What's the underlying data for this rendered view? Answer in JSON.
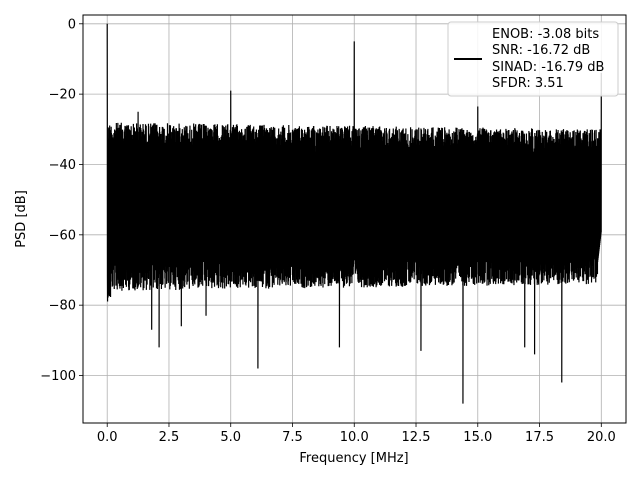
{
  "chart_data": {
    "type": "line",
    "xlabel": "Frequency [MHz]",
    "ylabel": "PSD [dB]",
    "xlim": [
      -0.98,
      21.0
    ],
    "ylim": [
      -113.5,
      2.5
    ],
    "xticks": [
      0.0,
      2.5,
      5.0,
      7.5,
      10.0,
      12.5,
      15.0,
      17.5,
      20.0
    ],
    "xtick_labels": [
      "0.0",
      "2.5",
      "5.0",
      "7.5",
      "10.0",
      "12.5",
      "15.0",
      "17.5",
      "20.0"
    ],
    "yticks": [
      0,
      -20,
      -40,
      -60,
      -80,
      -100
    ],
    "ytick_labels": [
      "0",
      "−20",
      "−40",
      "−60",
      "−80",
      "−100"
    ],
    "grid": true,
    "legend_position": "top-right",
    "series": [
      {
        "name": "ENOB: -3.08 bits\nSNR: -16.72 dB\nSINAD: -16.79 dB\nSFDR: 3.51",
        "color": "#000000",
        "x_range": [
          0.0,
          20.0
        ],
        "noise_floor_db": {
          "upper_envelope": -31,
          "lower_envelope": -72
        },
        "peaks": [
          {
            "x": 0.0,
            "y": 0
          },
          {
            "x": 1.25,
            "y": -25
          },
          {
            "x": 5.0,
            "y": -19
          },
          {
            "x": 10.0,
            "y": -5
          },
          {
            "x": 15.0,
            "y": -23.5
          },
          {
            "x": 20.0,
            "y": -14
          }
        ],
        "dips": [
          {
            "x": 1.8,
            "y": -87
          },
          {
            "x": 2.1,
            "y": -92
          },
          {
            "x": 3.0,
            "y": -86
          },
          {
            "x": 4.0,
            "y": -83
          },
          {
            "x": 6.1,
            "y": -98
          },
          {
            "x": 9.4,
            "y": -92
          },
          {
            "x": 12.7,
            "y": -93
          },
          {
            "x": 14.4,
            "y": -108
          },
          {
            "x": 16.9,
            "y": -92
          },
          {
            "x": 17.3,
            "y": -94
          },
          {
            "x": 18.4,
            "y": -102
          }
        ]
      }
    ],
    "legend_lines": [
      "ENOB: -3.08 bits",
      "SNR: -16.72 dB",
      "SINAD: -16.79 dB",
      "SFDR: 3.51"
    ]
  }
}
